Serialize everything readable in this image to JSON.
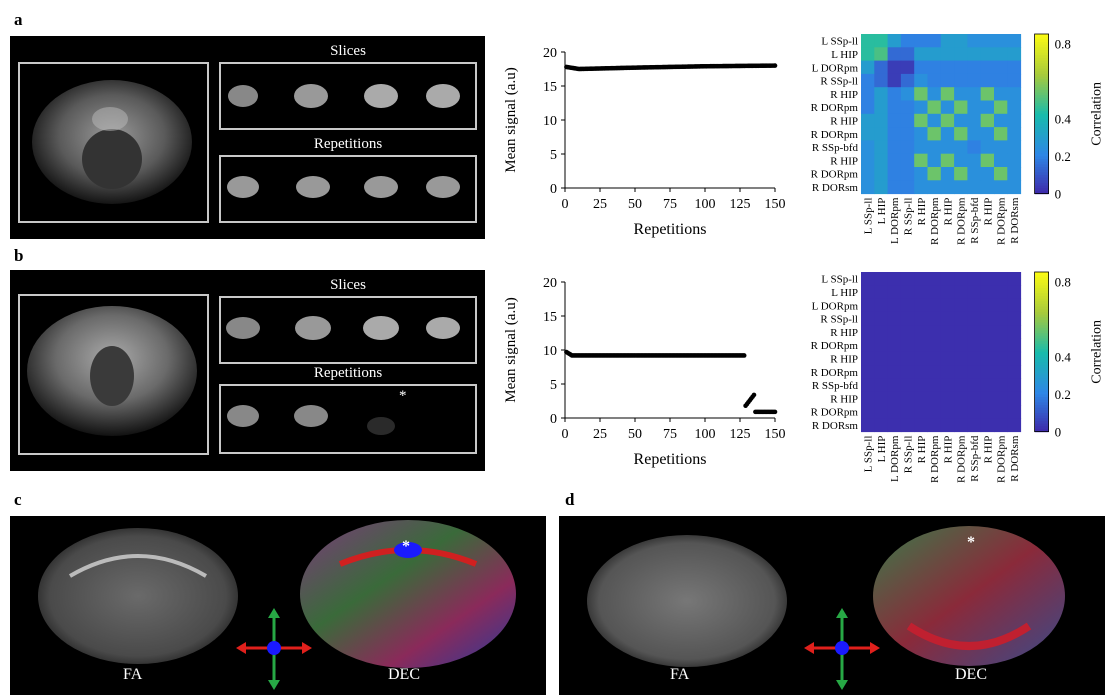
{
  "panels": {
    "a": "a",
    "b": "b",
    "c": "c",
    "d": "d"
  },
  "mri": {
    "slices_label": "Slices",
    "repetitions_label": "Repetitions",
    "asterisk": "*"
  },
  "dti": {
    "fa_label": "FA",
    "dec_label": "DEC",
    "asterisk": "*",
    "colors": {
      "red": "#e0201c",
      "green": "#27a845",
      "blue": "#1a1aff"
    }
  },
  "matrix_labels": [
    "L SSp-ll",
    "L HIP",
    "L DORpm",
    "R SSp-ll",
    "R HIP",
    "R DORpm",
    "R HIP",
    "R DORpm",
    "R SSp-bfd",
    "R HIP",
    "R DORpm",
    "R DORsm"
  ],
  "colorbar": {
    "label": "Correlation",
    "ticks": [
      "0.8",
      "0.4",
      "0.2",
      "0"
    ]
  },
  "chart_data": [
    {
      "type": "scatter",
      "panel": "a",
      "xlabel": "Repetitions",
      "ylabel": "Mean signal (a.u)",
      "xlim": [
        0,
        150
      ],
      "ylim": [
        0,
        20
      ],
      "xticks": [
        0,
        25,
        50,
        75,
        100,
        125,
        150
      ],
      "yticks": [
        0,
        5,
        10,
        15,
        20
      ],
      "series": [
        {
          "x_start": 1,
          "x_end": 150,
          "segments": [
            [
              1,
              17.8
            ],
            [
              10,
              17.5
            ],
            [
              50,
              17.7
            ],
            [
              100,
              17.9
            ],
            [
              150,
              18.0
            ]
          ]
        }
      ]
    },
    {
      "type": "scatter",
      "panel": "b",
      "xlabel": "Repetitions",
      "ylabel": "Mean signal (a.u)",
      "xlim": [
        0,
        150
      ],
      "ylim": [
        0,
        20
      ],
      "xticks": [
        0,
        25,
        50,
        75,
        100,
        125,
        150
      ],
      "yticks": [
        0,
        5,
        10,
        15,
        20
      ],
      "series": [
        {
          "x_start": 1,
          "x_end": 128,
          "segments": [
            [
              1,
              9.7
            ],
            [
              5,
              9.2
            ],
            [
              50,
              9.2
            ],
            [
              128,
              9.2
            ]
          ]
        },
        {
          "x_start": 129,
          "x_end": 135,
          "segments": [
            [
              129,
              1.8
            ],
            [
              135,
              3.4
            ]
          ]
        },
        {
          "x_start": 136,
          "x_end": 150,
          "segments": [
            [
              136,
              0.9
            ],
            [
              150,
              0.9
            ]
          ]
        }
      ]
    },
    {
      "type": "heatmap",
      "panel": "a",
      "rows": 12,
      "cols": 12,
      "vmin": 0,
      "vmax": 0.85,
      "cells": [
        [
          0.45,
          0.45,
          0.3,
          0.2,
          0.2,
          0.2,
          0.3,
          0.3,
          0.25,
          0.25,
          0.25,
          0.25
        ],
        [
          0.45,
          0.5,
          0.15,
          0.15,
          0.3,
          0.3,
          0.3,
          0.3,
          0.3,
          0.3,
          0.3,
          0.3
        ],
        [
          0.3,
          0.15,
          0.05,
          0.05,
          0.2,
          0.2,
          0.2,
          0.2,
          0.2,
          0.2,
          0.2,
          0.2
        ],
        [
          0.2,
          0.15,
          0.05,
          0.15,
          0.25,
          0.2,
          0.2,
          0.2,
          0.2,
          0.2,
          0.2,
          0.2
        ],
        [
          0.2,
          0.3,
          0.2,
          0.25,
          0.55,
          0.25,
          0.55,
          0.25,
          0.25,
          0.55,
          0.25,
          0.25
        ],
        [
          0.2,
          0.3,
          0.2,
          0.2,
          0.25,
          0.55,
          0.25,
          0.55,
          0.25,
          0.25,
          0.55,
          0.25
        ],
        [
          0.3,
          0.3,
          0.2,
          0.2,
          0.55,
          0.25,
          0.55,
          0.25,
          0.25,
          0.55,
          0.25,
          0.25
        ],
        [
          0.3,
          0.3,
          0.2,
          0.2,
          0.25,
          0.55,
          0.25,
          0.55,
          0.25,
          0.25,
          0.55,
          0.25
        ],
        [
          0.25,
          0.3,
          0.2,
          0.2,
          0.25,
          0.25,
          0.25,
          0.25,
          0.2,
          0.25,
          0.25,
          0.25
        ],
        [
          0.25,
          0.3,
          0.2,
          0.2,
          0.55,
          0.25,
          0.55,
          0.25,
          0.25,
          0.55,
          0.25,
          0.25
        ],
        [
          0.25,
          0.3,
          0.2,
          0.2,
          0.25,
          0.55,
          0.25,
          0.55,
          0.25,
          0.25,
          0.55,
          0.25
        ],
        [
          0.25,
          0.3,
          0.2,
          0.2,
          0.25,
          0.25,
          0.25,
          0.25,
          0.25,
          0.25,
          0.25,
          0.25
        ]
      ]
    },
    {
      "type": "heatmap",
      "panel": "b",
      "rows": 12,
      "cols": 12,
      "vmin": 0,
      "vmax": 0.85,
      "uniform_value": 0.02
    }
  ]
}
